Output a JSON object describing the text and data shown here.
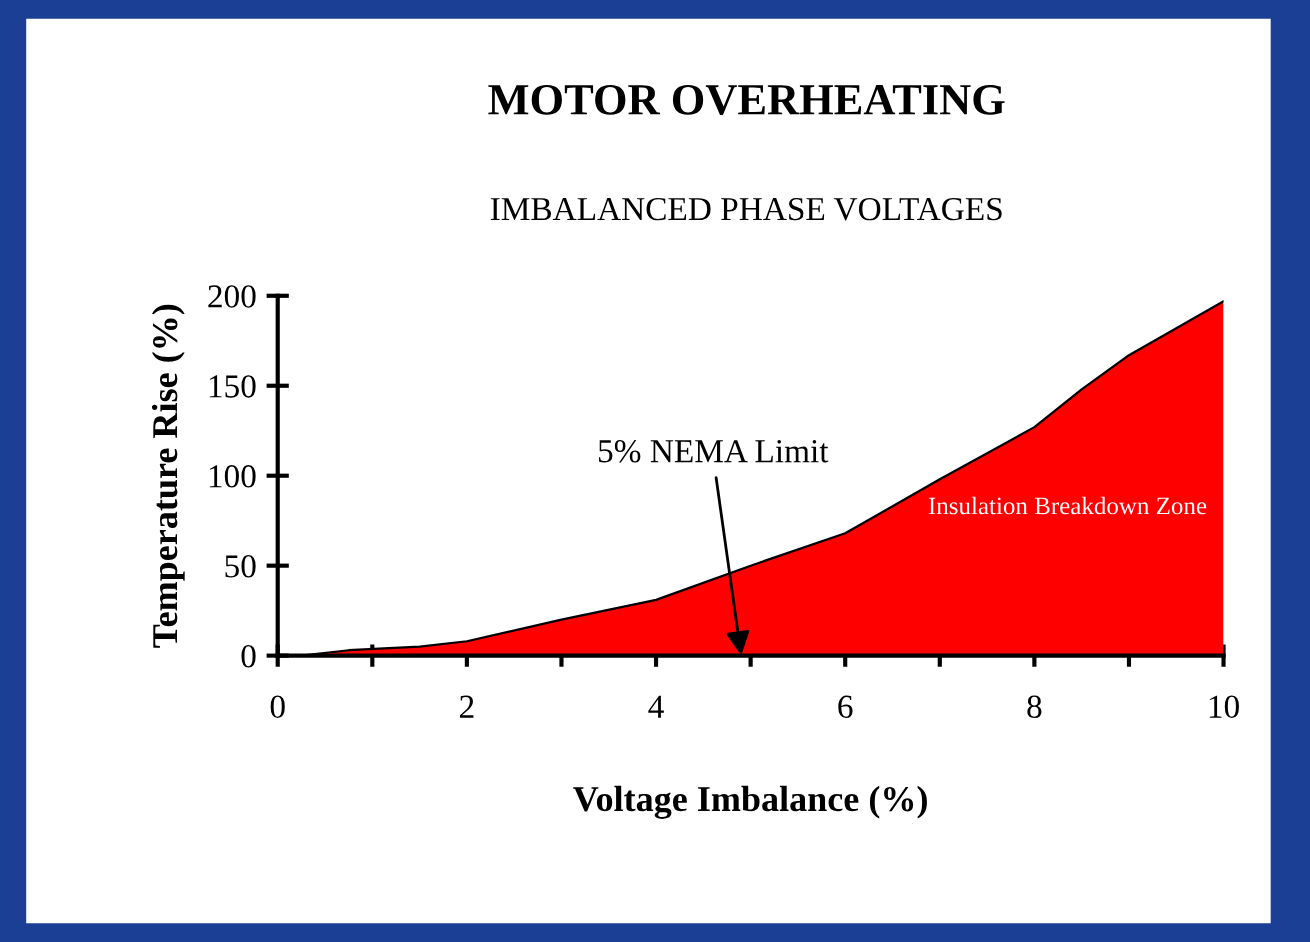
{
  "chart_data": {
    "type": "area",
    "title": "MOTOR OVERHEATING",
    "subtitle": "IMBALANCED PHASE VOLTAGES",
    "xlabel": "Voltage Imbalance (%)",
    "ylabel": "Temperature Rise (%)",
    "series": [
      {
        "color": "#ff0000",
        "x": [
          0.25,
          0.75,
          1.5,
          2,
          3,
          4,
          5,
          6,
          7,
          8,
          8.5,
          9,
          10
        ],
        "values": [
          0,
          3,
          5,
          8,
          20,
          31,
          50,
          68,
          98,
          127,
          148,
          167,
          197
        ]
      }
    ],
    "xlim": [
      0,
      10
    ],
    "ylim": [
      0,
      200
    ],
    "xticks": [
      0,
      {
        "value": 1,
        "label": null
      },
      2,
      {
        "value": 3,
        "label": null
      },
      4,
      {
        "value": 5,
        "label": null
      },
      6,
      {
        "value": 7,
        "label": null
      },
      8,
      {
        "value": 9,
        "label": null
      },
      10
    ],
    "yticks": [
      0,
      50,
      100,
      150,
      200
    ],
    "annotations": [
      {
        "text": "5% NEMA Limit",
        "x": 4.9,
        "y": 0
      },
      "Insulation Breakdown Zone"
    ],
    "grid": false,
    "legend": false
  }
}
